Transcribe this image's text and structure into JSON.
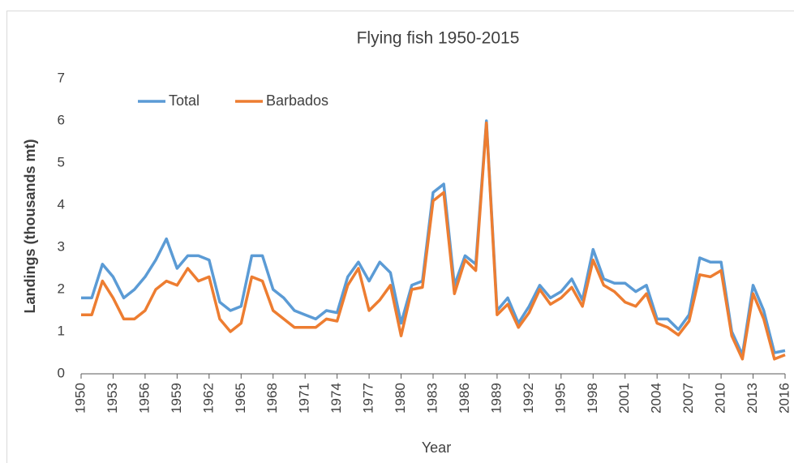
{
  "chart_data": {
    "type": "line",
    "title": "Flying fish 1950-2015",
    "x_label": "Year",
    "y_label": "Landings (thousands mt)",
    "x": [
      1950,
      1951,
      1952,
      1953,
      1954,
      1955,
      1956,
      1957,
      1958,
      1959,
      1960,
      1961,
      1962,
      1963,
      1964,
      1965,
      1966,
      1967,
      1968,
      1969,
      1970,
      1971,
      1972,
      1973,
      1974,
      1975,
      1976,
      1977,
      1978,
      1979,
      1980,
      1981,
      1982,
      1983,
      1984,
      1985,
      1986,
      1987,
      1988,
      1989,
      1990,
      1991,
      1992,
      1993,
      1994,
      1995,
      1996,
      1997,
      1998,
      1999,
      2000,
      2001,
      2002,
      2003,
      2004,
      2005,
      2006,
      2007,
      2008,
      2009,
      2010,
      2011,
      2012,
      2013,
      2014,
      2015,
      2016
    ],
    "series": [
      {
        "name": "Total",
        "color": "#5b9bd5",
        "values": [
          1.8,
          1.8,
          2.6,
          2.3,
          1.8,
          2.0,
          2.3,
          2.7,
          3.2,
          2.5,
          2.8,
          2.8,
          2.7,
          1.7,
          1.5,
          1.6,
          2.8,
          2.8,
          2.0,
          1.8,
          1.5,
          1.4,
          1.3,
          1.5,
          1.45,
          2.3,
          2.65,
          2.2,
          2.65,
          2.4,
          1.2,
          2.1,
          2.2,
          4.3,
          4.5,
          2.1,
          2.8,
          2.6,
          6.0,
          1.5,
          1.8,
          1.2,
          1.6,
          2.1,
          1.8,
          1.95,
          2.25,
          1.75,
          2.95,
          2.25,
          2.15,
          2.15,
          1.95,
          2.1,
          1.3,
          1.3,
          1.05,
          1.4,
          2.75,
          2.65,
          2.65,
          1.0,
          0.45,
          2.1,
          1.5,
          0.5,
          0.55
        ]
      },
      {
        "name": "Barbados",
        "color": "#ed7d31",
        "values": [
          1.4,
          1.4,
          2.2,
          1.8,
          1.3,
          1.3,
          1.5,
          2.0,
          2.2,
          2.1,
          2.5,
          2.2,
          2.3,
          1.3,
          1.0,
          1.2,
          2.3,
          2.2,
          1.5,
          1.3,
          1.1,
          1.1,
          1.1,
          1.3,
          1.25,
          2.1,
          2.5,
          1.5,
          1.75,
          2.1,
          0.9,
          2.0,
          2.05,
          4.1,
          4.3,
          1.9,
          2.7,
          2.45,
          5.95,
          1.4,
          1.65,
          1.1,
          1.45,
          2.0,
          1.65,
          1.8,
          2.05,
          1.6,
          2.7,
          2.1,
          1.95,
          1.7,
          1.6,
          1.9,
          1.2,
          1.1,
          0.92,
          1.25,
          2.35,
          2.3,
          2.45,
          0.9,
          0.35,
          1.9,
          1.3,
          0.35,
          0.45
        ]
      }
    ],
    "xlim": [
      1950,
      2016
    ],
    "xticks": [
      1950,
      1953,
      1956,
      1959,
      1962,
      1965,
      1968,
      1971,
      1974,
      1977,
      1980,
      1983,
      1986,
      1989,
      1992,
      1995,
      1998,
      2001,
      2004,
      2007,
      2010,
      2013,
      2016
    ],
    "ylim": [
      0,
      7
    ],
    "yticks": [
      0,
      1,
      2,
      3,
      4,
      5,
      6,
      7
    ],
    "grid": false,
    "legend": "top-left"
  }
}
